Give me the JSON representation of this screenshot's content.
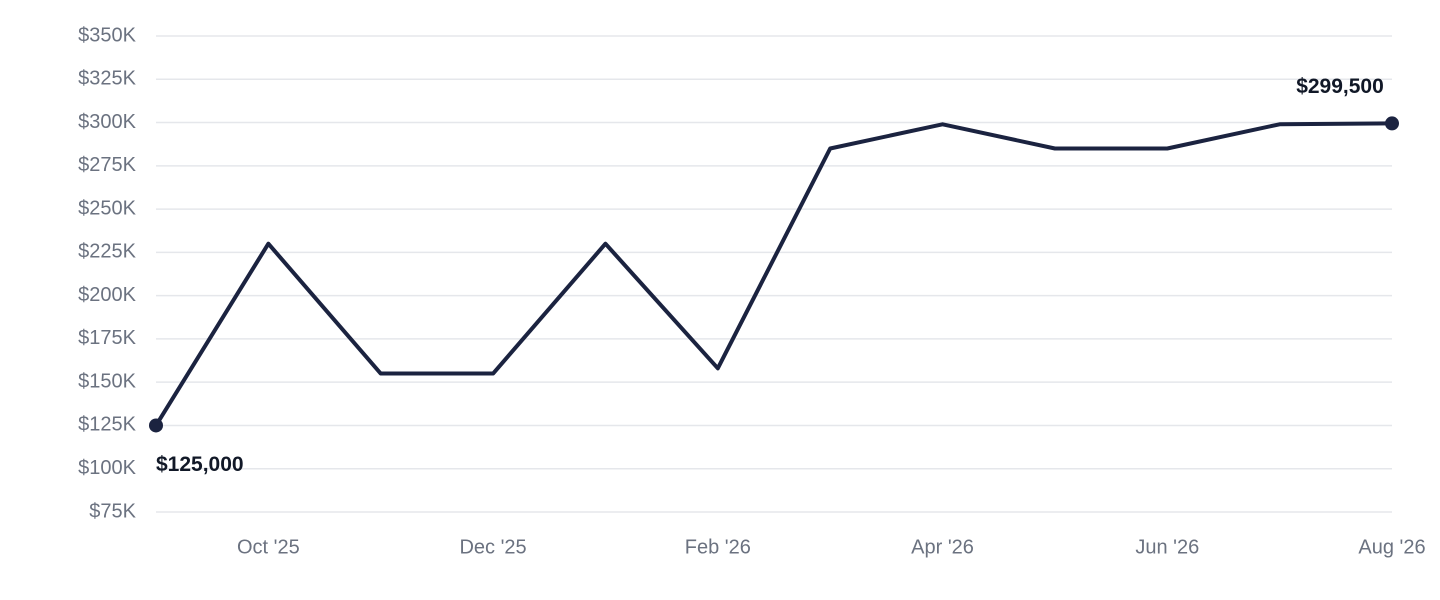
{
  "chart_data": {
    "type": "line",
    "categories": [
      null,
      "Oct '25",
      null,
      "Dec '25",
      null,
      "Feb '26",
      null,
      "Apr '26",
      null,
      "Jun '26",
      null,
      "Aug '26"
    ],
    "values": [
      125000,
      230000,
      155000,
      155000,
      230000,
      158000,
      285000,
      299000,
      285000,
      285000,
      299000,
      299500
    ],
    "value_labels": [
      "$125,000",
      null,
      null,
      null,
      null,
      null,
      null,
      null,
      null,
      null,
      null,
      "$299,500"
    ],
    "color": "#1b2340",
    "ylim": [
      75000,
      350000
    ],
    "yticks": [
      {
        "value": 75000,
        "label": "$75K"
      },
      {
        "value": 100000,
        "label": "$100K"
      },
      {
        "value": 125000,
        "label": "$125K"
      },
      {
        "value": 150000,
        "label": "$150K"
      },
      {
        "value": 175000,
        "label": "$175K"
      },
      {
        "value": 200000,
        "label": "$200K"
      },
      {
        "value": 225000,
        "label": "$225K"
      },
      {
        "value": 250000,
        "label": "$250K"
      },
      {
        "value": 275000,
        "label": "$275K"
      },
      {
        "value": 300000,
        "label": "$300K"
      },
      {
        "value": 325000,
        "label": "$325K"
      },
      {
        "value": 350000,
        "label": "$350K"
      }
    ],
    "grid": true
  }
}
